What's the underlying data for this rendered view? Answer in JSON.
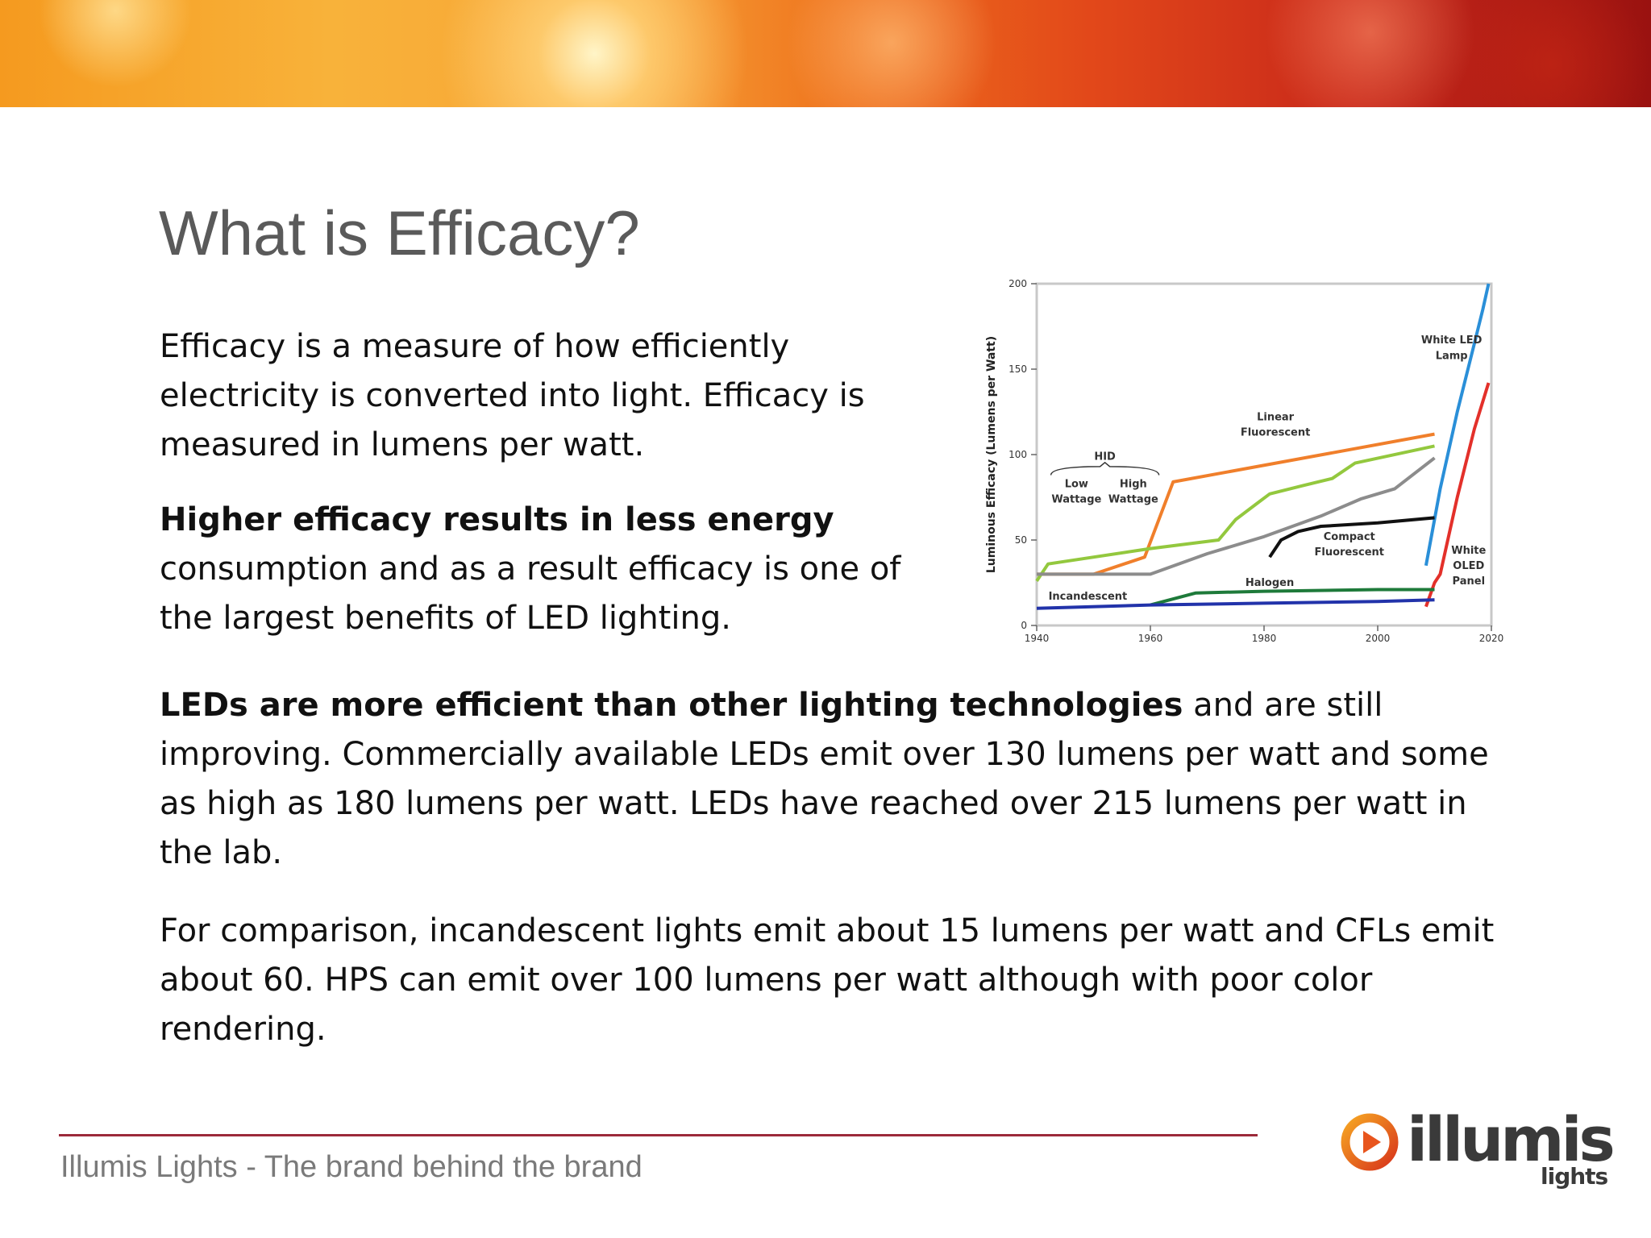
{
  "slide": {
    "title": "What is Efficacy?",
    "p1": "Efficacy is a measure of how efficiently electricity is converted into light. Efficacy is measured in lumens per watt.",
    "p2_bold": "Higher efficacy results in less energy",
    "p2_rest": " consumption and as a result efficacy is one of the largest benefits of LED lighting.",
    "p3_bold": "LEDs are more efficient than other lighting technologies",
    "p3_rest": " and are still improving. Commercially available LEDs emit over 130 lumens per watt and some as high as 180 lumens per watt. LEDs have reached over 215 lumens per watt in the lab.",
    "p4": "For comparison, incandescent lights emit about 15 lumens per watt and CFLs emit about 60. HPS can emit over 100 lumens per watt although with poor color rendering."
  },
  "footer": {
    "text": "Illumis Lights - The brand behind the brand",
    "logo_word": "illumis",
    "logo_sub": "lights"
  },
  "chart_data": {
    "type": "line",
    "title": "",
    "ylabel": "Luminous Efficacy (Lumens per Watt)",
    "xlabel": "",
    "xlim": [
      1940,
      2020
    ],
    "ylim": [
      0,
      200
    ],
    "xticks": [
      1940,
      1960,
      1980,
      2000,
      2020
    ],
    "yticks": [
      0,
      50,
      100,
      150,
      200
    ],
    "grid": false,
    "annotations": [
      {
        "text": "HID",
        "x": 1952,
        "y": 97
      },
      {
        "text": "Low",
        "x": 1947,
        "y": 81
      },
      {
        "text": "Wattage",
        "x": 1947,
        "y": 72
      },
      {
        "text": "High",
        "x": 1957,
        "y": 81
      },
      {
        "text": "Wattage",
        "x": 1957,
        "y": 72
      },
      {
        "text": "Linear",
        "x": 1982,
        "y": 120
      },
      {
        "text": "Fluorescent",
        "x": 1982,
        "y": 111
      },
      {
        "text": "White LED",
        "x": 2013,
        "y": 165
      },
      {
        "text": "Lamp",
        "x": 2013,
        "y": 156
      },
      {
        "text": "Compact",
        "x": 1995,
        "y": 50
      },
      {
        "text": "Fluorescent",
        "x": 1995,
        "y": 41
      },
      {
        "text": "White",
        "x": 2016,
        "y": 42
      },
      {
        "text": "OLED",
        "x": 2016,
        "y": 33
      },
      {
        "text": "Panel",
        "x": 2016,
        "y": 24
      },
      {
        "text": "Halogen",
        "x": 1981,
        "y": 23
      },
      {
        "text": "Incandescent",
        "x": 1949,
        "y": 15
      }
    ],
    "series": [
      {
        "color": "#2a8fd8",
        "x": [
          2008.5,
          2011,
          2014,
          2017,
          2018.5,
          2019.5
        ],
        "y": [
          35,
          80,
          125,
          165,
          185,
          200
        ]
      },
      {
        "color": "#e3302a",
        "x": [
          2008.5,
          2010,
          2011,
          2014,
          2017,
          2019.5
        ],
        "y": [
          11,
          25,
          30,
          75,
          115,
          142
        ]
      },
      {
        "color": "#f07f2b",
        "x": [
          1940,
          1950,
          1959,
          1964,
          2010
        ],
        "y": [
          30,
          30,
          40,
          84,
          112
        ]
      },
      {
        "color": "#93c83e",
        "x": [
          1940,
          1942,
          1960,
          1972,
          1975,
          1979,
          1981,
          1987,
          1992,
          1996,
          2010
        ],
        "y": [
          26,
          36,
          45,
          50,
          62,
          72,
          77,
          82,
          86,
          95,
          105
        ]
      },
      {
        "color": "#8c8c8c",
        "x": [
          1940,
          1960,
          1970,
          1980,
          1990,
          1997,
          2003,
          2010
        ],
        "y": [
          30,
          30,
          42,
          52,
          64,
          74,
          80,
          98
        ]
      },
      {
        "color": "#111111",
        "x": [
          1981,
          1983,
          1986,
          1990,
          2000,
          2010
        ],
        "y": [
          40,
          50,
          55,
          58,
          60,
          63
        ]
      },
      {
        "color": "#1e7a3a",
        "x": [
          1960,
          1968,
          1980,
          2000,
          2010
        ],
        "y": [
          12,
          19,
          20,
          21,
          21
        ]
      },
      {
        "color": "#2233aa",
        "x": [
          1940,
          1960,
          1980,
          2000,
          2010
        ],
        "y": [
          10,
          12,
          13,
          14,
          15
        ]
      }
    ]
  }
}
